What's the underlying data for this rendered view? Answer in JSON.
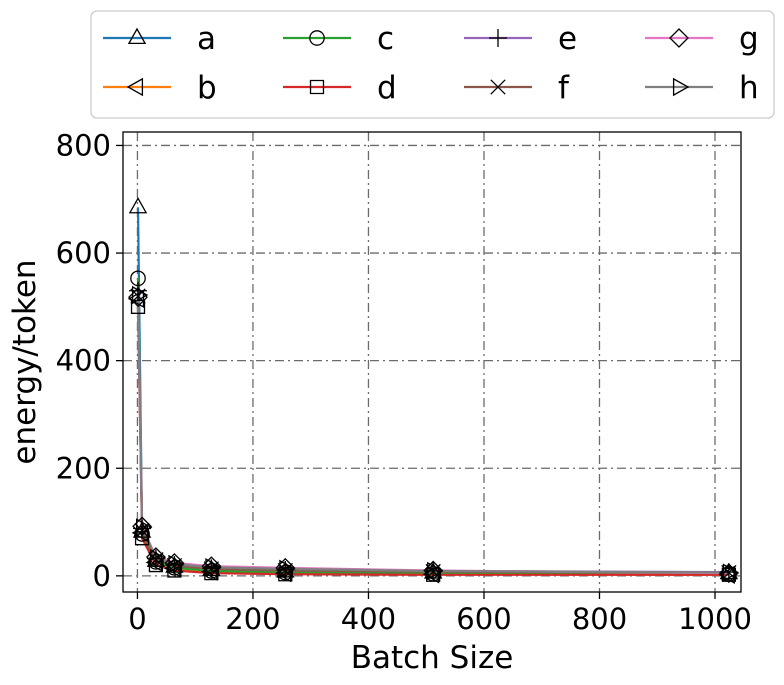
{
  "chart_data": {
    "type": "line",
    "xlabel": "Batch Size",
    "ylabel": "energy/token",
    "xlim": [
      -25,
      1045
    ],
    "ylim": [
      -30,
      825
    ],
    "xticks": [
      0,
      200,
      400,
      600,
      800,
      1000
    ],
    "yticks": [
      0,
      200,
      400,
      600,
      800
    ],
    "grid": true,
    "legend_position": "top (above plot), 4 columns",
    "x": [
      1,
      8,
      32,
      64,
      128,
      256,
      512,
      1024
    ],
    "series": [
      {
        "name": "a",
        "color": "#1f77b4",
        "marker": "triangle-up",
        "values": [
          685,
          82,
          28,
          17,
          11,
          8,
          6,
          5
        ]
      },
      {
        "name": "b",
        "color": "#ff7f0e",
        "marker": "triangle-left",
        "values": [
          515,
          80,
          25,
          14,
          8,
          5,
          3,
          2
        ]
      },
      {
        "name": "c",
        "color": "#2ca02c",
        "marker": "circle",
        "values": [
          553,
          78,
          26,
          15,
          9,
          6,
          4,
          3
        ]
      },
      {
        "name": "d",
        "color": "#d62728",
        "marker": "square",
        "values": [
          500,
          70,
          20,
          10,
          5,
          3,
          2,
          2
        ]
      },
      {
        "name": "e",
        "color": "#9467bd",
        "marker": "plus",
        "values": [
          530,
          88,
          32,
          20,
          14,
          11,
          9,
          7
        ]
      },
      {
        "name": "f",
        "color": "#8c564b",
        "marker": "x",
        "values": [
          520,
          84,
          30,
          19,
          13,
          10,
          8,
          6
        ]
      },
      {
        "name": "g",
        "color": "#e377c2",
        "marker": "diamond",
        "values": [
          518,
          92,
          35,
          24,
          18,
          15,
          10,
          5
        ]
      },
      {
        "name": "h",
        "color": "#7f7f7f",
        "marker": "triangle-right",
        "values": [
          522,
          90,
          33,
          22,
          16,
          13,
          9,
          6
        ]
      }
    ]
  }
}
